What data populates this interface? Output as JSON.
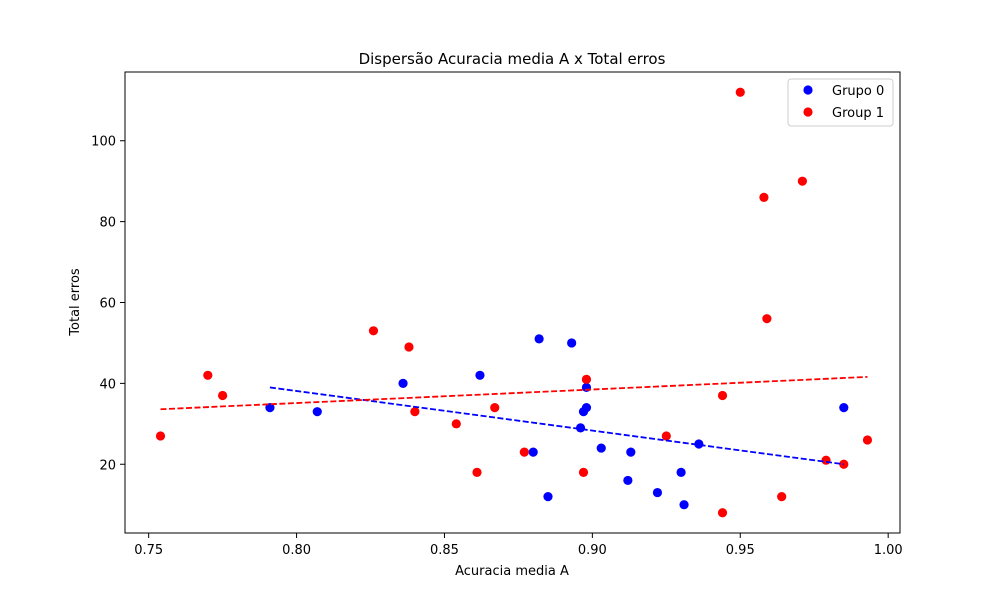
{
  "chart_data": {
    "type": "scatter",
    "title": "Dispersão Acuracia media A x Total erros",
    "xlabel": "Acuracia media A",
    "ylabel": "Total erros",
    "xlim": [
      0.742,
      1.004
    ],
    "ylim": [
      3,
      117
    ],
    "xticks": [
      0.75,
      0.8,
      0.85,
      0.9,
      0.95,
      1.0
    ],
    "xtick_labels": [
      "0.75",
      "0.80",
      "0.85",
      "0.90",
      "0.95",
      "1.00"
    ],
    "yticks": [
      20,
      40,
      60,
      80,
      100
    ],
    "ytick_labels": [
      "20",
      "40",
      "60",
      "80",
      "100"
    ],
    "grid": false,
    "legend_position": "top-right",
    "series": [
      {
        "name": "Grupo 0",
        "color": "#0000ff",
        "points": [
          [
            0.791,
            34
          ],
          [
            0.807,
            33
          ],
          [
            0.836,
            40
          ],
          [
            0.862,
            42
          ],
          [
            0.88,
            23
          ],
          [
            0.882,
            51
          ],
          [
            0.885,
            12
          ],
          [
            0.893,
            50
          ],
          [
            0.896,
            29
          ],
          [
            0.897,
            33
          ],
          [
            0.898,
            34
          ],
          [
            0.898,
            39
          ],
          [
            0.903,
            24
          ],
          [
            0.912,
            16
          ],
          [
            0.913,
            23
          ],
          [
            0.922,
            13
          ],
          [
            0.93,
            18
          ],
          [
            0.931,
            10
          ],
          [
            0.936,
            25
          ],
          [
            0.985,
            34
          ]
        ],
        "trend": [
          [
            0.791,
            39.0
          ],
          [
            0.985,
            20.0
          ]
        ]
      },
      {
        "name": "Group 1",
        "color": "#ff0000",
        "points": [
          [
            0.754,
            27
          ],
          [
            0.77,
            42
          ],
          [
            0.775,
            37
          ],
          [
            0.826,
            53
          ],
          [
            0.838,
            49
          ],
          [
            0.84,
            33
          ],
          [
            0.854,
            30
          ],
          [
            0.861,
            18
          ],
          [
            0.867,
            34
          ],
          [
            0.877,
            23
          ],
          [
            0.897,
            18
          ],
          [
            0.898,
            41
          ],
          [
            0.925,
            27
          ],
          [
            0.944,
            37
          ],
          [
            0.944,
            8
          ],
          [
            0.95,
            112
          ],
          [
            0.958,
            86
          ],
          [
            0.959,
            56
          ],
          [
            0.964,
            12
          ],
          [
            0.971,
            90
          ],
          [
            0.979,
            21
          ],
          [
            0.985,
            20
          ],
          [
            0.993,
            26
          ]
        ],
        "trend": [
          [
            0.754,
            33.6
          ],
          [
            0.993,
            41.6
          ]
        ]
      }
    ]
  }
}
